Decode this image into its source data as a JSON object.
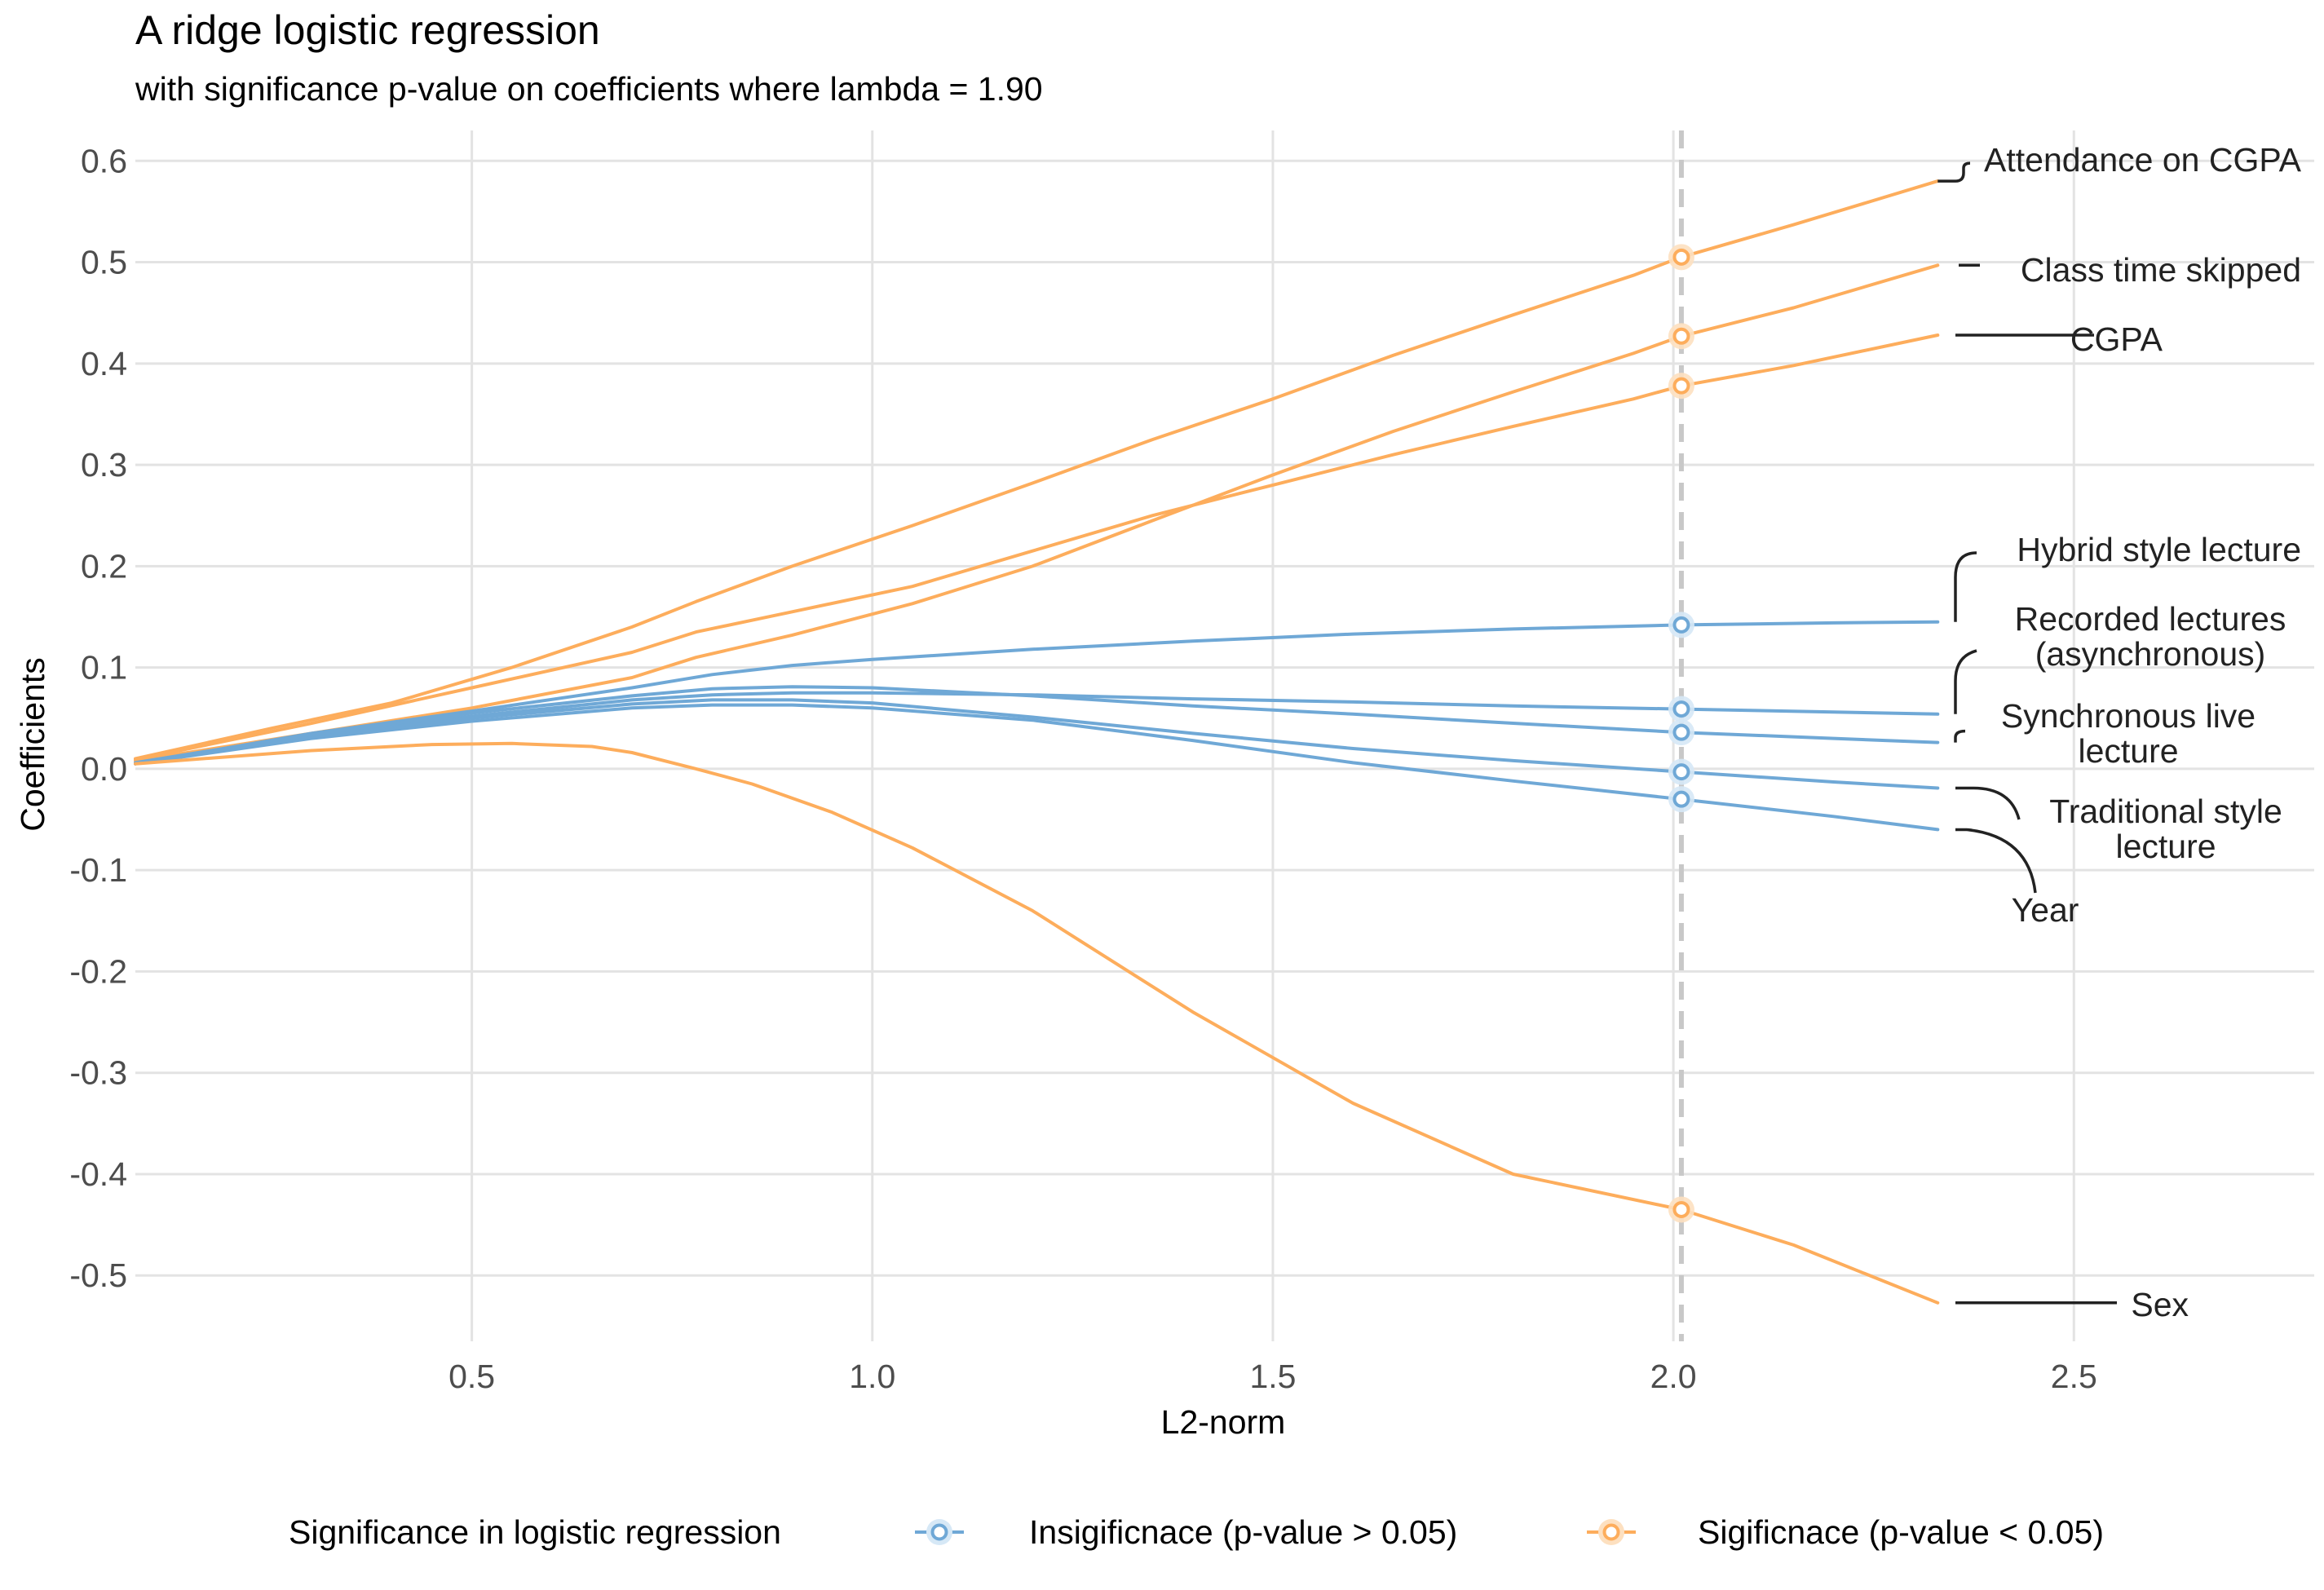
{
  "chart_data": {
    "type": "line",
    "title": "A ridge logistic regression",
    "subtitle": "with significance p-value on coefficients where lambda = 1.90",
    "xlabel": "L2-norm",
    "ylabel": "Coefficients",
    "xlim": [
      0.08,
      2.8
    ],
    "ylim": [
      -0.565,
      0.63
    ],
    "x_ticks": [
      0.5,
      1.0,
      1.5,
      2.0,
      2.5
    ],
    "x_tick_labels": [
      "0.5",
      "1.0",
      "1.5",
      "2.0",
      "2.5"
    ],
    "y_ticks": [
      0.6,
      0.5,
      0.4,
      0.3,
      0.2,
      0.1,
      0.0,
      -0.1,
      -0.2,
      -0.3,
      -0.4,
      -0.5
    ],
    "y_tick_labels": [
      "0.6",
      "0.5",
      "0.4",
      "0.3",
      "0.2",
      "0.1",
      "0.0",
      "-0.1",
      "-0.2",
      "-0.3",
      "-0.4",
      "-0.5"
    ],
    "grid": true,
    "reference_line": {
      "x": 2.01,
      "style": "dashed"
    },
    "colors": {
      "insignificant": "#6fa8d6",
      "significant": "#fdad5c",
      "annotation": "#222222",
      "reference": "#c8c8c8",
      "grid": "#e3e3e3"
    },
    "legend": {
      "position": "bottom",
      "title": "Significance in logistic regression",
      "entries": [
        {
          "label": "Insigificnace (p-value > 0.05)",
          "group": "insignificant"
        },
        {
          "label": "Sigificnace (p-value < 0.05)",
          "group": "significant"
        }
      ]
    },
    "series": [
      {
        "name": "Attendance on CGPA",
        "group": "significant",
        "x": [
          0.08,
          0.25,
          0.4,
          0.55,
          0.7,
          0.78,
          0.9,
          1.05,
          1.2,
          1.35,
          1.5,
          1.65,
          1.8,
          1.95,
          2.01,
          2.15,
          2.33
        ],
        "y": [
          0.01,
          0.04,
          0.065,
          0.1,
          0.14,
          0.165,
          0.2,
          0.24,
          0.282,
          0.325,
          0.365,
          0.408,
          0.448,
          0.487,
          0.505,
          0.537,
          0.58
        ],
        "marker": {
          "x": 2.01,
          "y": 0.505
        },
        "label": [
          "Attendance on CGPA"
        ]
      },
      {
        "name": "Class time skipped",
        "group": "significant",
        "x": [
          0.08,
          0.3,
          0.5,
          0.7,
          0.78,
          0.9,
          1.05,
          1.2,
          1.35,
          1.5,
          1.65,
          1.8,
          1.95,
          2.01,
          2.15,
          2.33
        ],
        "y": [
          0.008,
          0.035,
          0.06,
          0.09,
          0.11,
          0.132,
          0.163,
          0.2,
          0.245,
          0.29,
          0.333,
          0.372,
          0.41,
          0.427,
          0.455,
          0.497
        ],
        "marker": {
          "x": 2.01,
          "y": 0.427
        },
        "label": [
          "Class time skipped"
        ]
      },
      {
        "name": "CGPA",
        "group": "significant",
        "x": [
          0.08,
          0.3,
          0.5,
          0.7,
          0.78,
          0.9,
          1.05,
          1.2,
          1.35,
          1.5,
          1.65,
          1.8,
          1.95,
          2.01,
          2.15,
          2.33
        ],
        "y": [
          0.009,
          0.045,
          0.08,
          0.115,
          0.135,
          0.155,
          0.18,
          0.215,
          0.25,
          0.28,
          0.31,
          0.338,
          0.365,
          0.378,
          0.398,
          0.428
        ],
        "marker": {
          "x": 2.01,
          "y": 0.378
        },
        "label": [
          "CGPA"
        ]
      },
      {
        "name": "Hybrid style lecture",
        "group": "insignificant",
        "x": [
          0.08,
          0.3,
          0.5,
          0.7,
          0.8,
          0.9,
          1.0,
          1.2,
          1.4,
          1.6,
          1.8,
          2.01,
          2.2,
          2.33
        ],
        "y": [
          0.005,
          0.035,
          0.057,
          0.08,
          0.093,
          0.102,
          0.108,
          0.118,
          0.126,
          0.133,
          0.138,
          0.142,
          0.144,
          0.145
        ],
        "marker": {
          "x": 2.01,
          "y": 0.142
        },
        "label": [
          "Hybrid style lecture"
        ]
      },
      {
        "name": "Recorded lectures (asynchronous)",
        "group": "insignificant",
        "x": [
          0.08,
          0.3,
          0.5,
          0.7,
          0.8,
          0.9,
          1.0,
          1.2,
          1.4,
          1.6,
          1.8,
          2.01,
          2.2,
          2.33
        ],
        "y": [
          0.005,
          0.033,
          0.052,
          0.068,
          0.073,
          0.075,
          0.075,
          0.073,
          0.069,
          0.066,
          0.062,
          0.059,
          0.056,
          0.054
        ],
        "marker": {
          "x": 2.01,
          "y": 0.059
        },
        "label": [
          "Recorded lectures",
          "(asynchronous)"
        ]
      },
      {
        "name": "Synchronous live lecture",
        "group": "insignificant",
        "x": [
          0.08,
          0.3,
          0.5,
          0.7,
          0.8,
          0.9,
          1.0,
          1.2,
          1.4,
          1.6,
          1.8,
          2.01,
          2.2,
          2.33
        ],
        "y": [
          0.006,
          0.034,
          0.055,
          0.072,
          0.079,
          0.081,
          0.08,
          0.072,
          0.062,
          0.054,
          0.045,
          0.036,
          0.03,
          0.026
        ],
        "marker": {
          "x": 2.01,
          "y": 0.036
        },
        "label": [
          "Synchronous live",
          "lecture"
        ]
      },
      {
        "name": "Traditional style lecture",
        "group": "insignificant",
        "x": [
          0.08,
          0.3,
          0.5,
          0.7,
          0.8,
          0.9,
          1.0,
          1.2,
          1.4,
          1.6,
          1.8,
          2.01,
          2.2,
          2.33
        ],
        "y": [
          0.005,
          0.031,
          0.05,
          0.064,
          0.068,
          0.068,
          0.065,
          0.051,
          0.035,
          0.02,
          0.008,
          -0.003,
          -0.013,
          -0.019
        ],
        "marker": {
          "x": 2.01,
          "y": -0.003
        },
        "label": [
          "Traditional style",
          "lecture"
        ]
      },
      {
        "name": "Year",
        "group": "insignificant",
        "x": [
          0.08,
          0.3,
          0.5,
          0.7,
          0.8,
          0.9,
          1.0,
          1.2,
          1.4,
          1.6,
          1.8,
          2.01,
          2.2,
          2.33
        ],
        "y": [
          0.005,
          0.03,
          0.047,
          0.06,
          0.063,
          0.063,
          0.06,
          0.048,
          0.028,
          0.006,
          -0.012,
          -0.03,
          -0.047,
          -0.06
        ],
        "marker": {
          "x": 2.01,
          "y": -0.03
        },
        "label": [
          "Year"
        ]
      },
      {
        "name": "Sex",
        "group": "significant",
        "x": [
          0.08,
          0.3,
          0.45,
          0.55,
          0.65,
          0.7,
          0.78,
          0.85,
          0.95,
          1.05,
          1.2,
          1.4,
          1.6,
          1.8,
          2.01,
          2.15,
          2.33
        ],
        "y": [
          0.005,
          0.018,
          0.024,
          0.025,
          0.022,
          0.016,
          0.0,
          -0.015,
          -0.043,
          -0.078,
          -0.14,
          -0.24,
          -0.33,
          -0.4,
          -0.435,
          -0.47,
          -0.527
        ],
        "marker": {
          "x": 2.01,
          "y": -0.435
        },
        "label": [
          "Sex"
        ]
      }
    ]
  }
}
